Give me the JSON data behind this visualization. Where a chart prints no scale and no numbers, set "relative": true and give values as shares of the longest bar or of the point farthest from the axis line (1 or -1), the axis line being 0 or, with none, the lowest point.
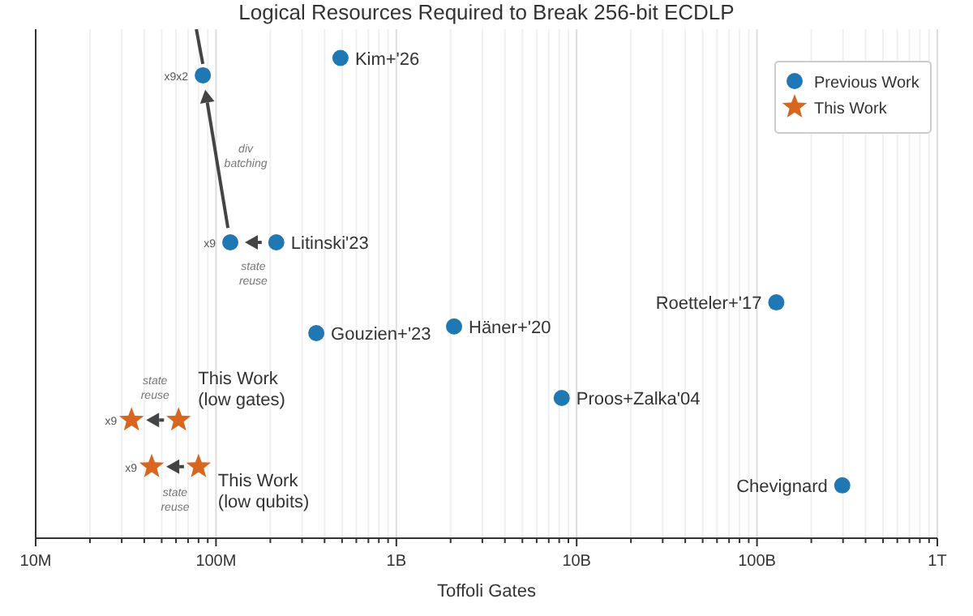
{
  "chart_data": {
    "type": "scatter",
    "title": "Logical Resources Required to Break 256-bit ECDLP",
    "xlabel": "Toffoli Gates",
    "log": "x",
    "relative": true,
    "tick_labels": "x",
    "grid": "x",
    "legend": "top right",
    "xlim": [
      10000000,
      1000000000000
    ],
    "xticks": [
      {
        "value": 10000000,
        "label": "10M"
      },
      {
        "value": 100000000,
        "label": "100M"
      },
      {
        "value": 1000000000,
        "label": "1B"
      },
      {
        "value": 10000000000,
        "label": "10B"
      },
      {
        "value": 100000000000,
        "label": "100B"
      },
      {
        "value": 1000000000000,
        "label": "1T"
      }
    ],
    "series": [
      {
        "name": "Previous Work",
        "color": "#1f77b4",
        "marker": "circle",
        "x": [
          84500000,
          120000000,
          216000000,
          490000000,
          360000000,
          2090000000,
          8260000000,
          128000000000,
          297000000000
        ],
        "values": [
          0.964,
          0.616,
          0.616,
          1,
          0.427,
          0.441,
          0.292,
          0.491,
          0.11
        ]
      },
      {
        "name": "This Work",
        "color": "#d9661f",
        "marker": "star",
        "x": [
          62000000,
          34000000,
          80000000,
          44000000
        ],
        "values": [
          0.246,
          0.246,
          0.149,
          0.149
        ]
      }
    ],
    "annotations": [
      {
        "text": "x9x2",
        "x": 84500000,
        "y": 0.964
      },
      {
        "text": "x9",
        "x": 120000000,
        "y": 0.616
      },
      {
        "text": "Litinski'23",
        "x": 216000000,
        "y": 0.616
      },
      {
        "text": "Kim+'26",
        "x": 490000000,
        "y": 1
      },
      {
        "text": "Gouzien+'23",
        "x": 360000000,
        "y": 0.427
      },
      {
        "text": "Häner+'20",
        "x": 2090000000,
        "y": 0.441
      },
      {
        "text": "Proos+Zalka'04",
        "x": 8260000000,
        "y": 0.292
      },
      {
        "text": "Roetteler+'17",
        "x": 128000000000,
        "y": 0.491
      },
      {
        "text": "Chevignard",
        "x": 297000000000,
        "y": 0.11
      },
      {
        "text": "x9",
        "x": 34000000,
        "y": 0.246
      },
      {
        "text": "x9",
        "x": 44000000,
        "y": 0.149
      },
      "div batching",
      "state reuse",
      "state reuse",
      "state reuse",
      {
        "text": "This Work (low gates)",
        "x": 62000000,
        "y": 0.246
      },
      {
        "text": "This Work (low qubits)",
        "x": 80000000,
        "y": 0.149
      }
    ]
  }
}
